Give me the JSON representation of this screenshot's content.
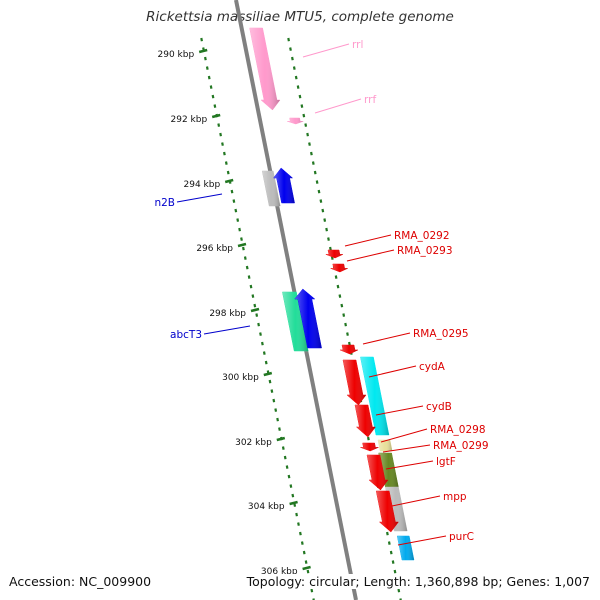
{
  "title": "Rickettsia massiliae MTU5, complete genome",
  "accession": "Accession: NC_009900",
  "summary": "Topology: circular; Length: 1,360,898 bp; Genes: 1,007",
  "colors": {
    "backbone": "#808080",
    "backbone_light": "#c8c8c8",
    "tick": "#227722",
    "tick_label": "#111111",
    "rna": "#ff99cc",
    "gene_red": "#ee0000",
    "gene_blue": "#0000ee",
    "gene_gray": "#bbbbbb",
    "gene_cyan": "#00e8f0",
    "gene_green": "#22dd99",
    "gene_olive": "#668822",
    "gene_darkgray": "#777777",
    "gene_tan": "#e8e09a",
    "gene_sky": "#00aaee",
    "label_red": "#dd0000",
    "label_blue": "#0000cc",
    "label_pink": "#ff99cc"
  },
  "ticks": [
    {
      "label": "290 kbp"
    },
    {
      "label": "292 kbp"
    },
    {
      "label": "294 kbp"
    },
    {
      "label": "296 kbp"
    },
    {
      "label": "298 kbp"
    },
    {
      "label": "300 kbp"
    },
    {
      "label": "302 kbp"
    },
    {
      "label": "304 kbp"
    },
    {
      "label": "306 kbp"
    }
  ],
  "features": [
    {
      "name": "rrl",
      "color": "rna"
    },
    {
      "name": "rrf",
      "color": "rna"
    },
    {
      "name": "",
      "color": "gene_gray"
    },
    {
      "name": "n2B",
      "color": "gene_blue"
    },
    {
      "name": "RMA_0292",
      "color": "gene_red"
    },
    {
      "name": "RMA_0293",
      "color": "gene_red"
    },
    {
      "name": "abcT3",
      "color": "gene_green"
    },
    {
      "name": "",
      "color": "gene_blue"
    },
    {
      "name": "RMA_0295",
      "color": "gene_red"
    },
    {
      "name": "",
      "color": "gene_red"
    },
    {
      "name": "cydA",
      "color": "gene_cyan"
    },
    {
      "name": "cydB",
      "color": "gene_red"
    },
    {
      "name": "RMA_0298",
      "color": "gene_tan"
    },
    {
      "name": "RMA_0299",
      "color": "gene_red"
    },
    {
      "name": "lgtF",
      "color": "gene_olive"
    },
    {
      "name": "",
      "color": "gene_red"
    },
    {
      "name": "mpp",
      "color": "gene_gray"
    },
    {
      "name": "",
      "color": "gene_red"
    },
    {
      "name": "purC",
      "color": "gene_sky"
    }
  ]
}
